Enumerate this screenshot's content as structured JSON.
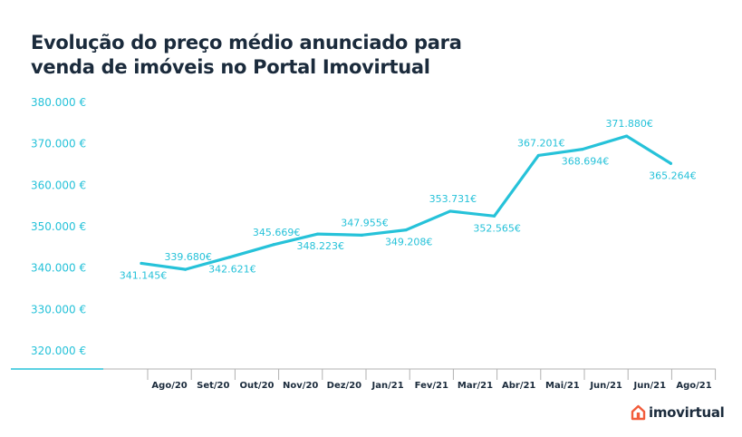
{
  "title": {
    "line1": "Evolução do preço médio anunciado para",
    "line2": "venda de imóveis no Portal Imovirtual"
  },
  "brand": {
    "name": "imovirtual",
    "icon": "imovirtual-house-logo-icon",
    "color": "#f25c3b"
  },
  "colors": {
    "line": "#26c2d9",
    "ytick": "#26c2d9",
    "label": "#26c2d9",
    "axis": "#b0b0b0",
    "title": "#1b2b3c"
  },
  "chart_data": {
    "type": "line",
    "title": "Evolução do preço médio anunciado para venda de imóveis no Portal Imovirtual",
    "xlabel": "",
    "ylabel": "",
    "ylim": [
      315000,
      385000
    ],
    "yticks": [
      320000,
      330000,
      340000,
      350000,
      360000,
      370000,
      380000
    ],
    "ytick_labels": [
      "320.000 €",
      "330.000 €",
      "340.000 €",
      "350.000 €",
      "360.000 €",
      "370.000 €",
      "380.000 €"
    ],
    "categories": [
      "Ago/20",
      "Set/20",
      "Out/20",
      "Nov/20",
      "Dez/20",
      "Jan/21",
      "Fev/21",
      "Mar/21",
      "Abr/21",
      "Mai/21",
      "Jun/21",
      "Jun/21",
      "Ago/21"
    ],
    "values": [
      341145,
      339680,
      342621,
      345669,
      348223,
      347955,
      349208,
      353731,
      352565,
      367201,
      368694,
      371880,
      365264
    ],
    "value_labels": [
      "341.145€",
      "339.680€",
      "342.621€",
      "345.669€",
      "348.223€",
      "347.955€",
      "349.208€",
      "353.731€",
      "352.565€",
      "367.201€",
      "368.694€",
      "371.880€",
      "365.264€"
    ],
    "grid": false,
    "legend": "none"
  }
}
